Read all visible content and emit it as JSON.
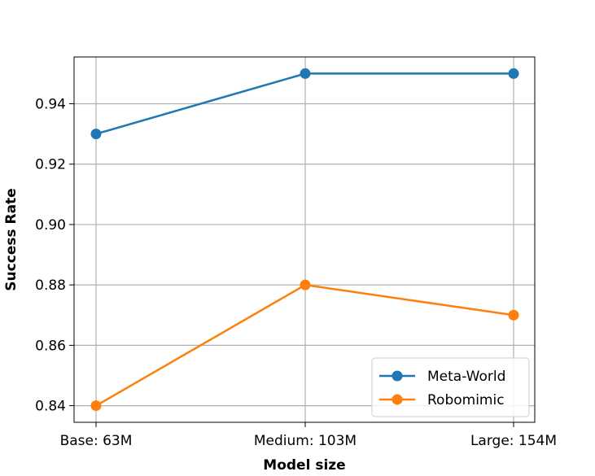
{
  "chart_data": {
    "type": "line",
    "categories": [
      "Base: 63M",
      "Medium: 103M",
      "Large: 154M"
    ],
    "series": [
      {
        "name": "Meta-World",
        "values": [
          0.93,
          0.95,
          0.95
        ],
        "color": "#1f77b4"
      },
      {
        "name": "Robomimic",
        "values": [
          0.84,
          0.88,
          0.87
        ],
        "color": "#ff7f0e"
      }
    ],
    "xlabel": "Model size",
    "ylabel": "Success Rate",
    "ylim": [
      0.8345,
      0.9555
    ],
    "yticks": [
      "0.84",
      "0.86",
      "0.88",
      "0.90",
      "0.92",
      "0.94"
    ],
    "grid": true,
    "legend_position": "lower-right"
  }
}
